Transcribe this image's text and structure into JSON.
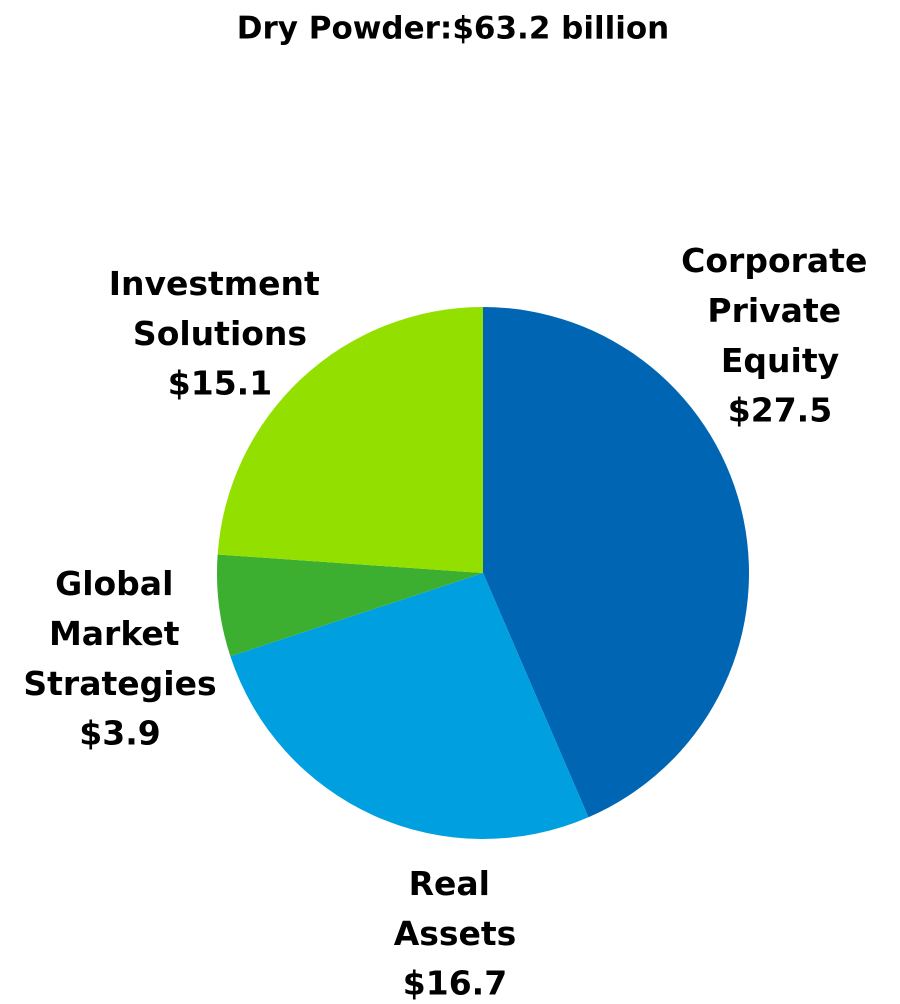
{
  "chart_data": {
    "type": "pie",
    "title": "Dry Powder:$63.2 billion",
    "categories": [
      "Corporate Private Equity",
      "Real Assets",
      "Global Market Strategies",
      "Investment Solutions"
    ],
    "values": [
      27.5,
      16.7,
      3.9,
      15.1
    ],
    "value_labels": [
      "$27.5",
      "$16.7",
      "$3.9",
      "$15.1"
    ],
    "colors": [
      "#0066b3",
      "#00a0e0",
      "#3caf30",
      "#93e000"
    ]
  }
}
